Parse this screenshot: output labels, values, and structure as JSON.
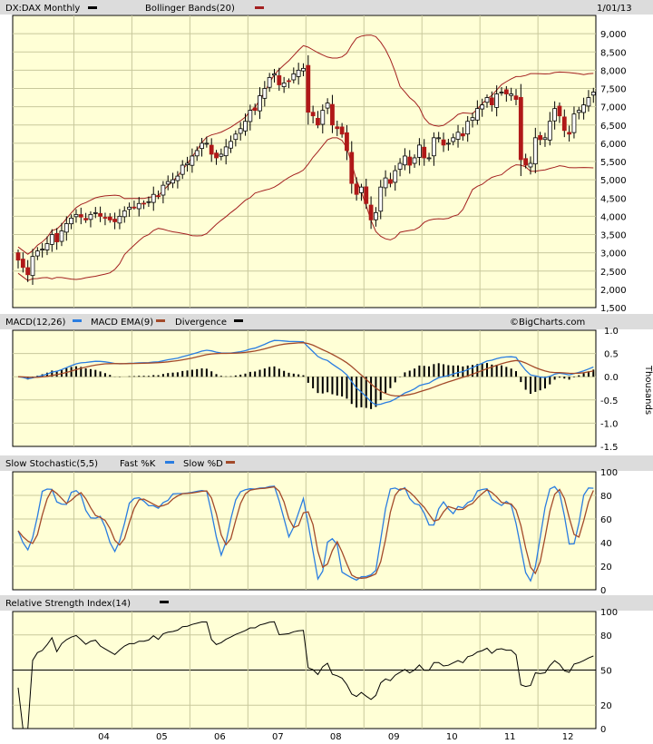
{
  "header": {
    "symbol_label": "DX:DAX Monthly",
    "bollinger_label": "Bollinger Bands(20)",
    "date": "1/01/13",
    "macd_label": "MACD(12,26)",
    "macd_ema_label": "MACD EMA(9)",
    "divergence_label": "Divergence",
    "watermark": "©BigCharts.com",
    "stoch_label": "Slow Stochastic(5,5)",
    "fastk_label": "Fast %K",
    "slowd_label": "Slow %D",
    "rsi_label": "Relative Strength Index(14)",
    "macd_units": "Thousands"
  },
  "colors": {
    "plot_bg": "#ffffd6",
    "grid": "#c8c89c",
    "up_candle": "#ffffff",
    "down_candle": "#b01818",
    "band": "#a32020",
    "macd": "#2a7de1",
    "macd_ema": "#a34a2a",
    "stoch_fast": "#2a7de1",
    "stoch_slow": "#a34a2a",
    "rsi": "#000000"
  },
  "chart_data": [
    {
      "type": "candlestick",
      "title": "DX:DAX Monthly",
      "series": [
        {
          "name": "Bollinger Bands(20)",
          "values": []
        }
      ],
      "ylim": [
        1500,
        9500
      ],
      "yticks": [
        "9,000",
        "8,500",
        "8,000",
        "7,500",
        "7,000",
        "6,500",
        "6,000",
        "5,500",
        "5,000",
        "4,500",
        "4,000",
        "3,500",
        "3,000",
        "2,500",
        "2,000",
        "1,500"
      ],
      "x_ticks": [
        "04",
        "05",
        "06",
        "07",
        "08",
        "09",
        "10",
        "11",
        "12"
      ],
      "date_range": [
        "2003-01",
        "2012-12"
      ],
      "close": [
        2800,
        2600,
        2400,
        2900,
        3050,
        3100,
        3250,
        3500,
        3300,
        3600,
        3800,
        3950,
        4050,
        3980,
        3900,
        4050,
        4100,
        4000,
        3950,
        3900,
        3850,
        4000,
        4150,
        4250,
        4250,
        4350,
        4350,
        4400,
        4600,
        4550,
        4850,
        4950,
        5000,
        5100,
        5400,
        5450,
        5650,
        5800,
        6000,
        6000,
        5700,
        5600,
        5700,
        5900,
        6050,
        6250,
        6400,
        6600,
        6900,
        6900,
        7300,
        7500,
        7800,
        7900,
        7600,
        7650,
        7700,
        7900,
        8000,
        8050,
        6850,
        6750,
        6500,
        6900,
        7100,
        6500,
        6400,
        6250,
        5800,
        4900,
        4600,
        4800,
        4350,
        3900,
        4100,
        4800,
        5050,
        4900,
        5250,
        5450,
        5650,
        5400,
        5600,
        5950,
        5600,
        5600,
        6150,
        6150,
        5950,
        6000,
        6150,
        6300,
        6200,
        6600,
        6700,
        6950,
        7050,
        7250,
        7050,
        7350,
        7400,
        7350,
        7350,
        7200,
        5550,
        5400,
        5450,
        6150,
        6100,
        6150,
        6600,
        6950,
        6750,
        6350,
        6250,
        6800,
        6900,
        7050,
        7250,
        7400,
        7600,
        7700
      ]
    },
    {
      "type": "line",
      "title": "MACD(12,26)",
      "series": [
        {
          "name": "MACD(12,26)",
          "values": []
        },
        {
          "name": "MACD EMA(9)",
          "values": []
        },
        {
          "name": "Divergence",
          "values": []
        }
      ],
      "ylabel": "Thousands",
      "ylim": [
        -1.5,
        1.0
      ],
      "yticks": [
        "1.0",
        "0.5",
        "0.0",
        "-0.5",
        "-1.0",
        "-1.5"
      ]
    },
    {
      "type": "line",
      "title": "Slow Stochastic(5,5)",
      "series": [
        {
          "name": "Fast %K",
          "values": []
        },
        {
          "name": "Slow %D",
          "values": []
        }
      ],
      "ylim": [
        0,
        100
      ],
      "yticks": [
        "100",
        "80",
        "60",
        "40",
        "20",
        "0"
      ]
    },
    {
      "type": "line",
      "title": "Relative Strength Index(14)",
      "series": [
        {
          "name": "Relative Strength Index(14)",
          "values": []
        }
      ],
      "ylim": [
        0,
        100
      ],
      "yticks": [
        "100",
        "80",
        "50",
        "20",
        "0"
      ],
      "reference_line": 50
    }
  ]
}
